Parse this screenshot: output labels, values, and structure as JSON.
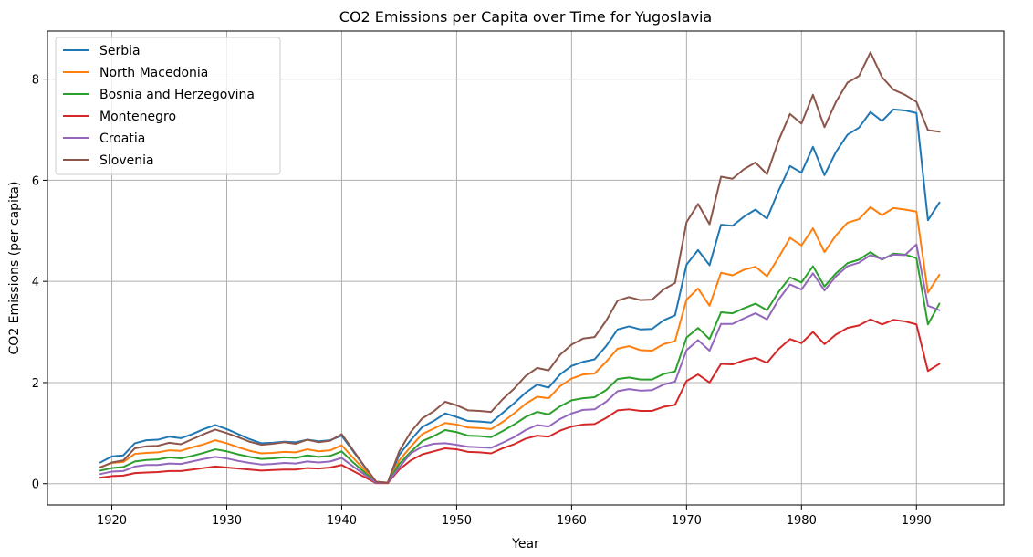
{
  "chart_data": {
    "type": "line",
    "title": "CO2 Emissions per Capita over Time for Yugoslavia",
    "xlabel": "Year",
    "ylabel": "CO2 Emissions (per capita)",
    "xlim": [
      1914.4,
      1997.6
    ],
    "ylim": [
      -0.42,
      8.95
    ],
    "xticks": [
      1920,
      1930,
      1940,
      1950,
      1960,
      1970,
      1980,
      1990
    ],
    "yticks": [
      0,
      2,
      4,
      6,
      8
    ],
    "grid": true,
    "legend_position": "top-left",
    "x": [
      1919,
      1920,
      1921,
      1922,
      1923,
      1924,
      1925,
      1926,
      1927,
      1928,
      1929,
      1930,
      1931,
      1932,
      1933,
      1934,
      1935,
      1936,
      1937,
      1938,
      1939,
      1940,
      1941,
      1942,
      1943,
      1944,
      1945,
      1946,
      1947,
      1948,
      1949,
      1950,
      1951,
      1952,
      1953,
      1954,
      1955,
      1956,
      1957,
      1958,
      1959,
      1960,
      1961,
      1962,
      1963,
      1964,
      1965,
      1966,
      1967,
      1968,
      1969,
      1970,
      1971,
      1972,
      1973,
      1974,
      1975,
      1976,
      1977,
      1978,
      1979,
      1980,
      1981,
      1982,
      1983,
      1984,
      1985,
      1986,
      1987,
      1988,
      1989,
      1990,
      1991,
      1992
    ],
    "series": [
      {
        "name": "Serbia",
        "color": "#1f77b4",
        "values": [
          0.42,
          0.54,
          0.56,
          0.8,
          0.86,
          0.87,
          0.93,
          0.9,
          0.98,
          1.08,
          1.16,
          1.08,
          0.98,
          0.88,
          0.8,
          0.81,
          0.83,
          0.82,
          0.87,
          0.84,
          0.86,
          0.95,
          0.64,
          0.33,
          0.03,
          0.02,
          0.57,
          0.86,
          1.12,
          1.24,
          1.39,
          1.32,
          1.24,
          1.23,
          1.21,
          1.4,
          1.59,
          1.8,
          1.96,
          1.9,
          2.16,
          2.33,
          2.41,
          2.46,
          2.72,
          3.05,
          3.11,
          3.05,
          3.06,
          3.23,
          3.33,
          4.33,
          4.62,
          4.32,
          5.12,
          5.1,
          5.28,
          5.42,
          5.24,
          5.79,
          6.28,
          6.15,
          6.66,
          6.1,
          6.56,
          6.9,
          7.04,
          7.35,
          7.17,
          7.4,
          7.38,
          7.33,
          5.21,
          5.56
        ]
      },
      {
        "name": "North Macedonia",
        "color": "#ff7f0e",
        "values": [
          0.33,
          0.41,
          0.43,
          0.59,
          0.61,
          0.62,
          0.66,
          0.65,
          0.72,
          0.78,
          0.86,
          0.8,
          0.72,
          0.65,
          0.6,
          0.61,
          0.63,
          0.62,
          0.68,
          0.64,
          0.66,
          0.76,
          0.51,
          0.27,
          0.03,
          0.02,
          0.46,
          0.73,
          0.98,
          1.09,
          1.2,
          1.17,
          1.11,
          1.1,
          1.08,
          1.22,
          1.39,
          1.58,
          1.72,
          1.69,
          1.93,
          2.08,
          2.16,
          2.18,
          2.41,
          2.67,
          2.72,
          2.64,
          2.63,
          2.76,
          2.82,
          3.64,
          3.86,
          3.52,
          4.17,
          4.12,
          4.23,
          4.29,
          4.1,
          4.47,
          4.86,
          4.71,
          5.05,
          4.58,
          4.91,
          5.16,
          5.23,
          5.47,
          5.31,
          5.45,
          5.42,
          5.38,
          3.78,
          4.13
        ]
      },
      {
        "name": "Bosnia and Herzegovina",
        "color": "#2ca02c",
        "values": [
          0.26,
          0.31,
          0.33,
          0.44,
          0.47,
          0.48,
          0.52,
          0.5,
          0.55,
          0.61,
          0.68,
          0.64,
          0.58,
          0.53,
          0.49,
          0.5,
          0.52,
          0.51,
          0.56,
          0.53,
          0.55,
          0.64,
          0.42,
          0.22,
          0.02,
          0.02,
          0.39,
          0.63,
          0.84,
          0.94,
          1.06,
          1.02,
          0.95,
          0.94,
          0.92,
          1.04,
          1.17,
          1.32,
          1.42,
          1.37,
          1.53,
          1.65,
          1.69,
          1.71,
          1.85,
          2.07,
          2.1,
          2.06,
          2.06,
          2.17,
          2.22,
          2.89,
          3.08,
          2.86,
          3.39,
          3.37,
          3.47,
          3.56,
          3.43,
          3.79,
          4.08,
          3.98,
          4.3,
          3.9,
          4.16,
          4.36,
          4.43,
          4.58,
          4.43,
          4.55,
          4.53,
          4.46,
          3.15,
          3.56
        ]
      },
      {
        "name": "Montenegro",
        "color": "#d62728",
        "values": [
          0.12,
          0.15,
          0.16,
          0.21,
          0.22,
          0.23,
          0.25,
          0.25,
          0.28,
          0.31,
          0.34,
          0.32,
          0.3,
          0.28,
          0.26,
          0.27,
          0.28,
          0.28,
          0.31,
          0.3,
          0.32,
          0.37,
          0.25,
          0.13,
          0.01,
          0.01,
          0.28,
          0.46,
          0.58,
          0.64,
          0.7,
          0.68,
          0.63,
          0.62,
          0.6,
          0.7,
          0.78,
          0.89,
          0.95,
          0.93,
          1.05,
          1.13,
          1.17,
          1.18,
          1.3,
          1.45,
          1.47,
          1.44,
          1.44,
          1.52,
          1.56,
          2.03,
          2.16,
          2.0,
          2.37,
          2.36,
          2.44,
          2.49,
          2.39,
          2.66,
          2.86,
          2.78,
          3.0,
          2.76,
          2.95,
          3.08,
          3.13,
          3.25,
          3.15,
          3.24,
          3.21,
          3.15,
          2.23,
          2.37
        ]
      },
      {
        "name": "Croatia",
        "color": "#9467bd",
        "values": [
          0.19,
          0.24,
          0.25,
          0.34,
          0.37,
          0.37,
          0.4,
          0.39,
          0.44,
          0.49,
          0.53,
          0.5,
          0.45,
          0.41,
          0.38,
          0.39,
          0.41,
          0.4,
          0.44,
          0.42,
          0.44,
          0.51,
          0.34,
          0.18,
          0.02,
          0.02,
          0.32,
          0.6,
          0.73,
          0.79,
          0.8,
          0.77,
          0.73,
          0.72,
          0.71,
          0.81,
          0.92,
          1.06,
          1.16,
          1.13,
          1.28,
          1.39,
          1.46,
          1.47,
          1.62,
          1.83,
          1.87,
          1.84,
          1.85,
          1.96,
          2.02,
          2.64,
          2.84,
          2.63,
          3.16,
          3.16,
          3.27,
          3.37,
          3.25,
          3.64,
          3.94,
          3.84,
          4.16,
          3.82,
          4.1,
          4.3,
          4.37,
          4.52,
          4.44,
          4.53,
          4.52,
          4.73,
          3.52,
          3.43
        ]
      },
      {
        "name": "Slovenia",
        "color": "#8c564b",
        "values": [
          0.32,
          0.42,
          0.46,
          0.7,
          0.74,
          0.75,
          0.81,
          0.78,
          0.88,
          0.98,
          1.07,
          1.0,
          0.92,
          0.83,
          0.77,
          0.79,
          0.82,
          0.79,
          0.87,
          0.82,
          0.85,
          0.98,
          0.66,
          0.34,
          0.04,
          0.02,
          0.64,
          1.02,
          1.29,
          1.43,
          1.62,
          1.55,
          1.45,
          1.44,
          1.42,
          1.67,
          1.88,
          2.13,
          2.29,
          2.24,
          2.55,
          2.75,
          2.87,
          2.9,
          3.22,
          3.62,
          3.69,
          3.63,
          3.64,
          3.84,
          3.97,
          5.17,
          5.53,
          5.13,
          6.07,
          6.03,
          6.22,
          6.35,
          6.12,
          6.78,
          7.31,
          7.12,
          7.69,
          7.05,
          7.55,
          7.93,
          8.06,
          8.53,
          8.04,
          7.79,
          7.69,
          7.55,
          6.99,
          6.96
        ]
      }
    ]
  }
}
